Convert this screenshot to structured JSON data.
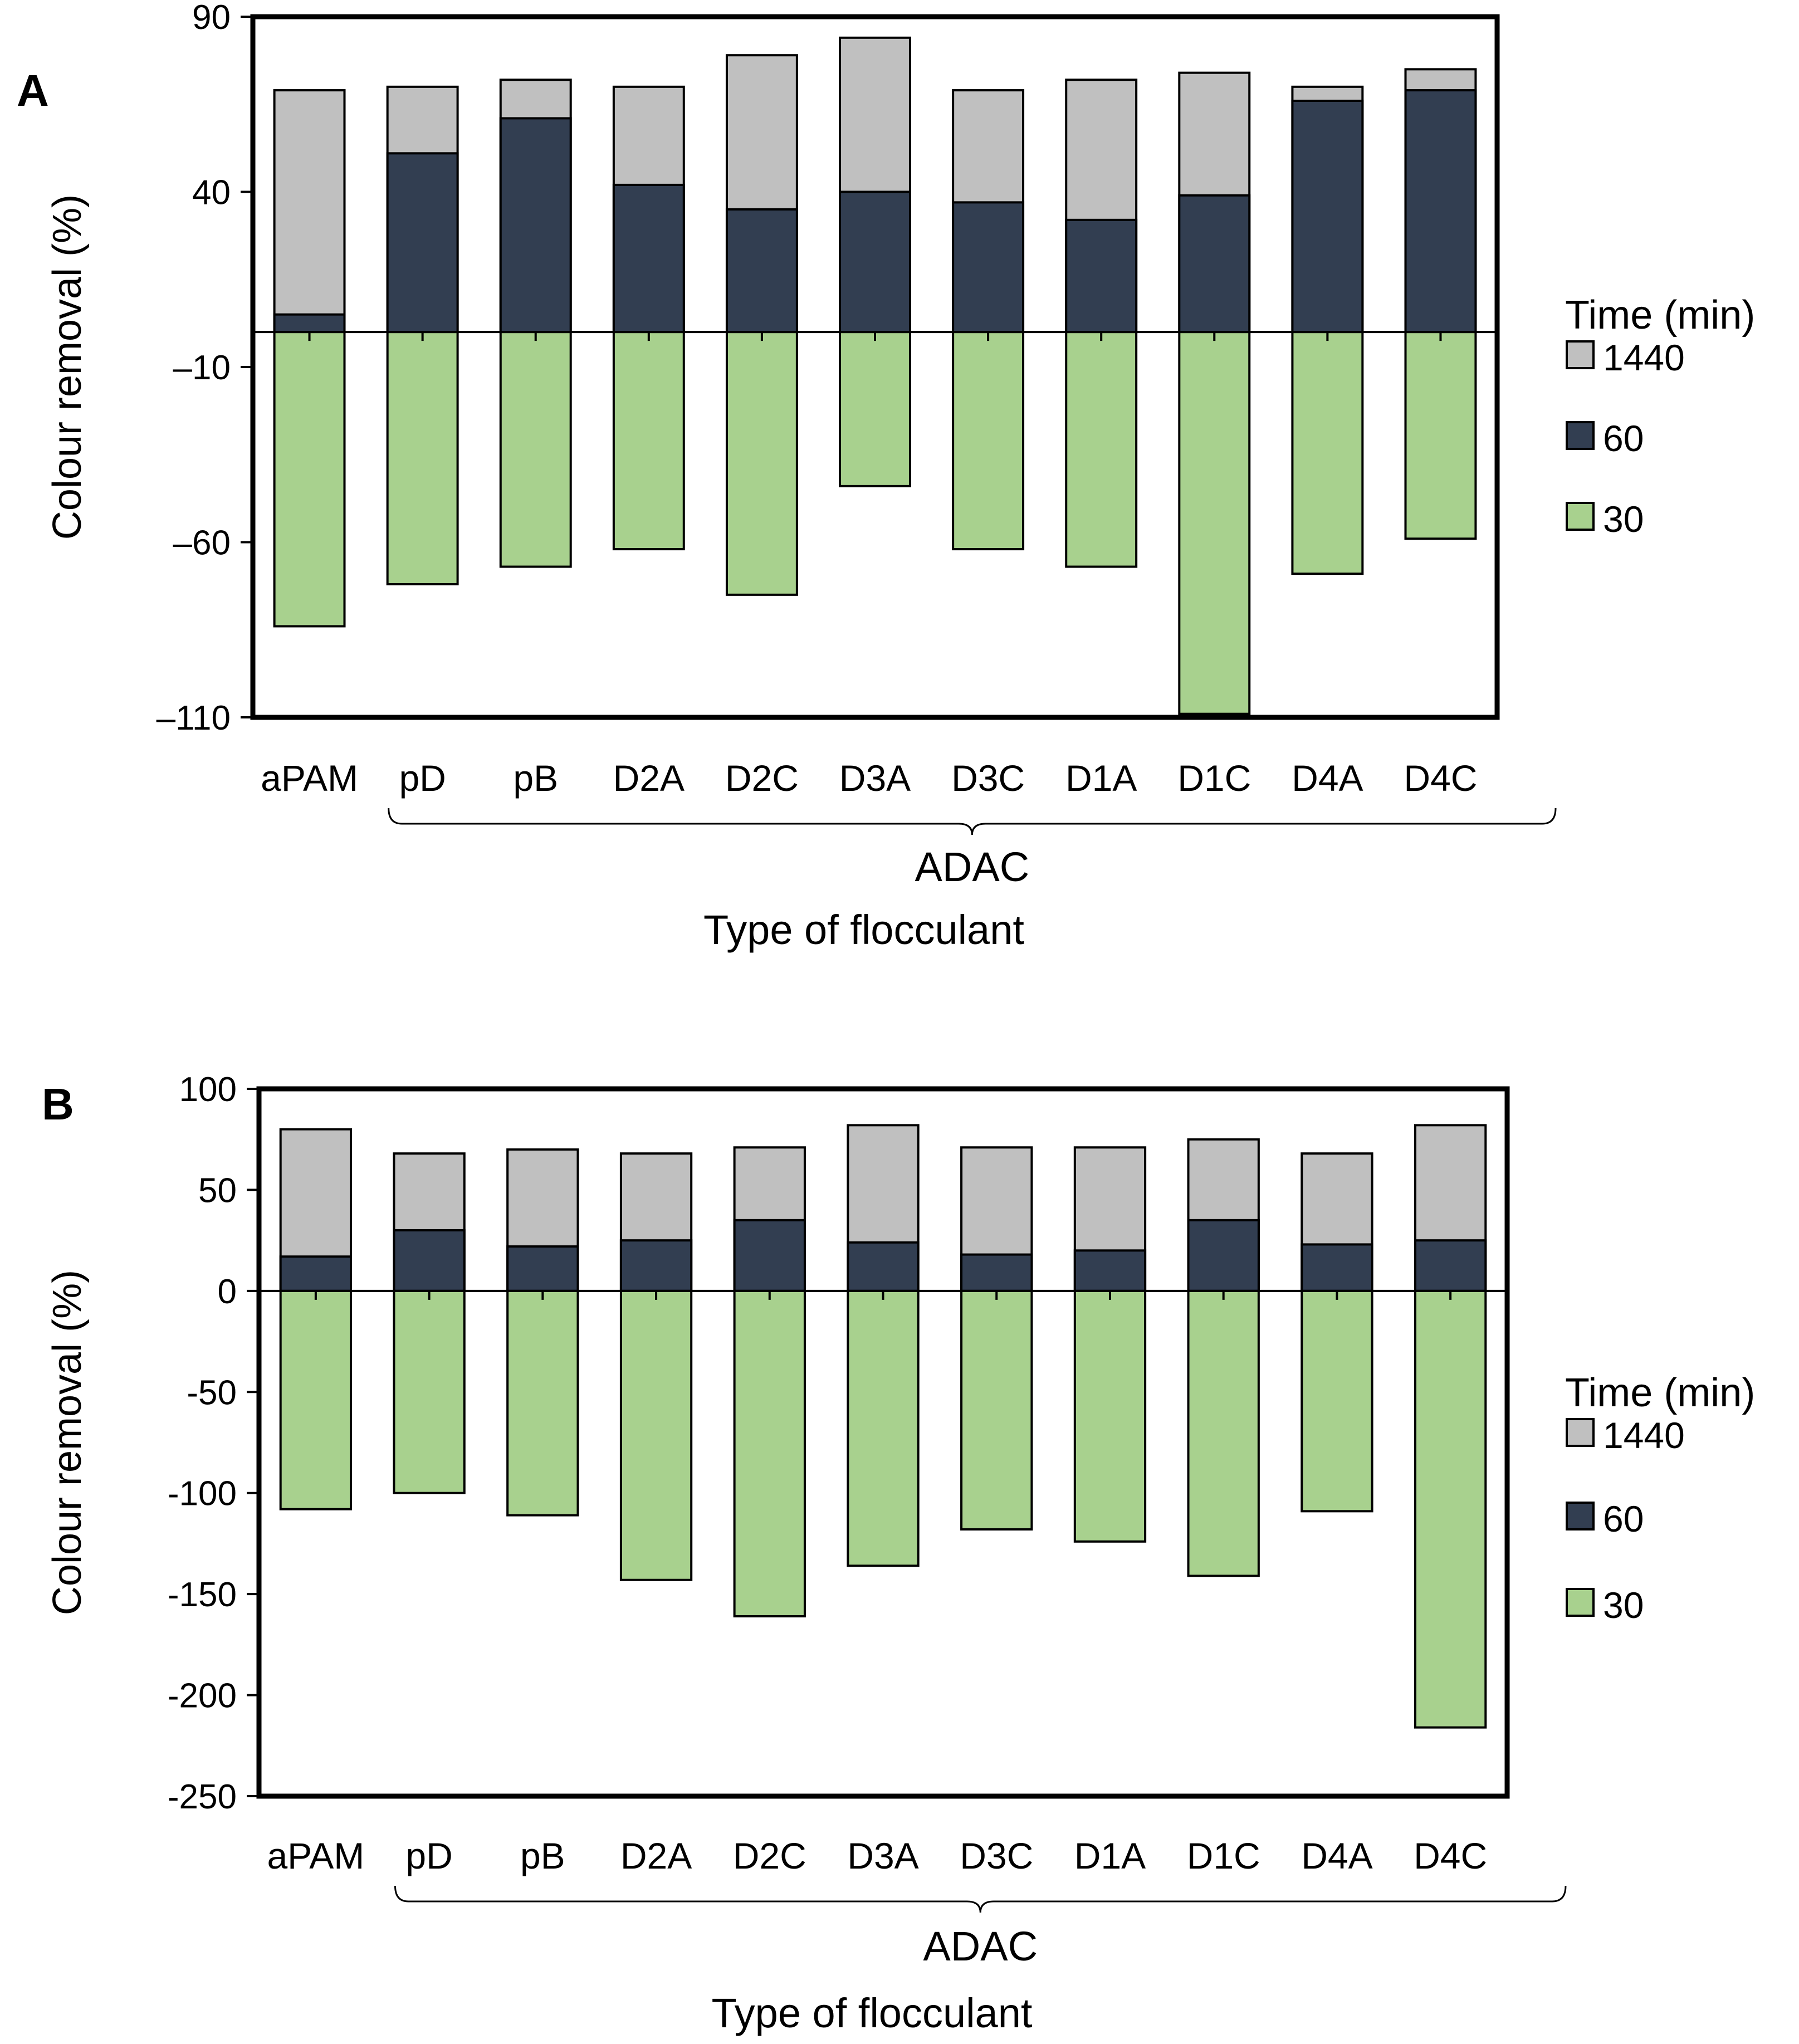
{
  "colors": {
    "t1440": "#c0c0c0",
    "t60": "#323e51",
    "t30": "#a8d18e"
  },
  "chart_data": [
    {
      "type": "bar",
      "panel": "A",
      "ylabel": "Colour removal (%)",
      "xlabel": "Type of flocculant",
      "group_label": "ADAC",
      "yticks": [
        "90",
        "40",
        "–10",
        "–60",
        "–110"
      ],
      "ylim": [
        -110,
        90
      ],
      "categories": [
        "aPAM",
        "pD",
        "pB",
        "D2A",
        "D2C",
        "D3A",
        "D3C",
        "D1A",
        "D1C",
        "D4A",
        "D4C"
      ],
      "legend_title": "Time (min)",
      "series": [
        {
          "name": "1440",
          "values": [
            69,
            70,
            72,
            70,
            79,
            84,
            69,
            72,
            74,
            70,
            75
          ]
        },
        {
          "name": "60",
          "values": [
            5,
            51,
            61,
            42,
            35,
            40,
            37,
            32,
            39,
            66,
            69
          ]
        },
        {
          "name": "30",
          "values": [
            -84,
            -72,
            -67,
            -62,
            -75,
            -44,
            -62,
            -67,
            -109,
            -69,
            -59
          ]
        }
      ]
    },
    {
      "type": "bar",
      "panel": "B",
      "ylabel": "Colour removal (%)",
      "xlabel": "Type of flocculant",
      "group_label": "ADAC",
      "yticks": [
        "100",
        "50",
        "0",
        "-50",
        "-100",
        "-150",
        "-200",
        "-250"
      ],
      "ylim": [
        -250,
        100
      ],
      "categories": [
        "aPAM",
        "pD",
        "pB",
        "D2A",
        "D2C",
        "D3A",
        "D3C",
        "D1A",
        "D1C",
        "D4A",
        "D4C"
      ],
      "legend_title": "Time (min)",
      "series": [
        {
          "name": "1440",
          "values": [
            80,
            68,
            70,
            68,
            71,
            82,
            71,
            71,
            75,
            68,
            82
          ]
        },
        {
          "name": "60",
          "values": [
            17,
            30,
            22,
            25,
            35,
            24,
            18,
            20,
            35,
            23,
            25
          ]
        },
        {
          "name": "30",
          "values": [
            -108,
            -100,
            -111,
            -143,
            -161,
            -136,
            -118,
            -124,
            -141,
            -109,
            -216
          ]
        }
      ]
    }
  ]
}
